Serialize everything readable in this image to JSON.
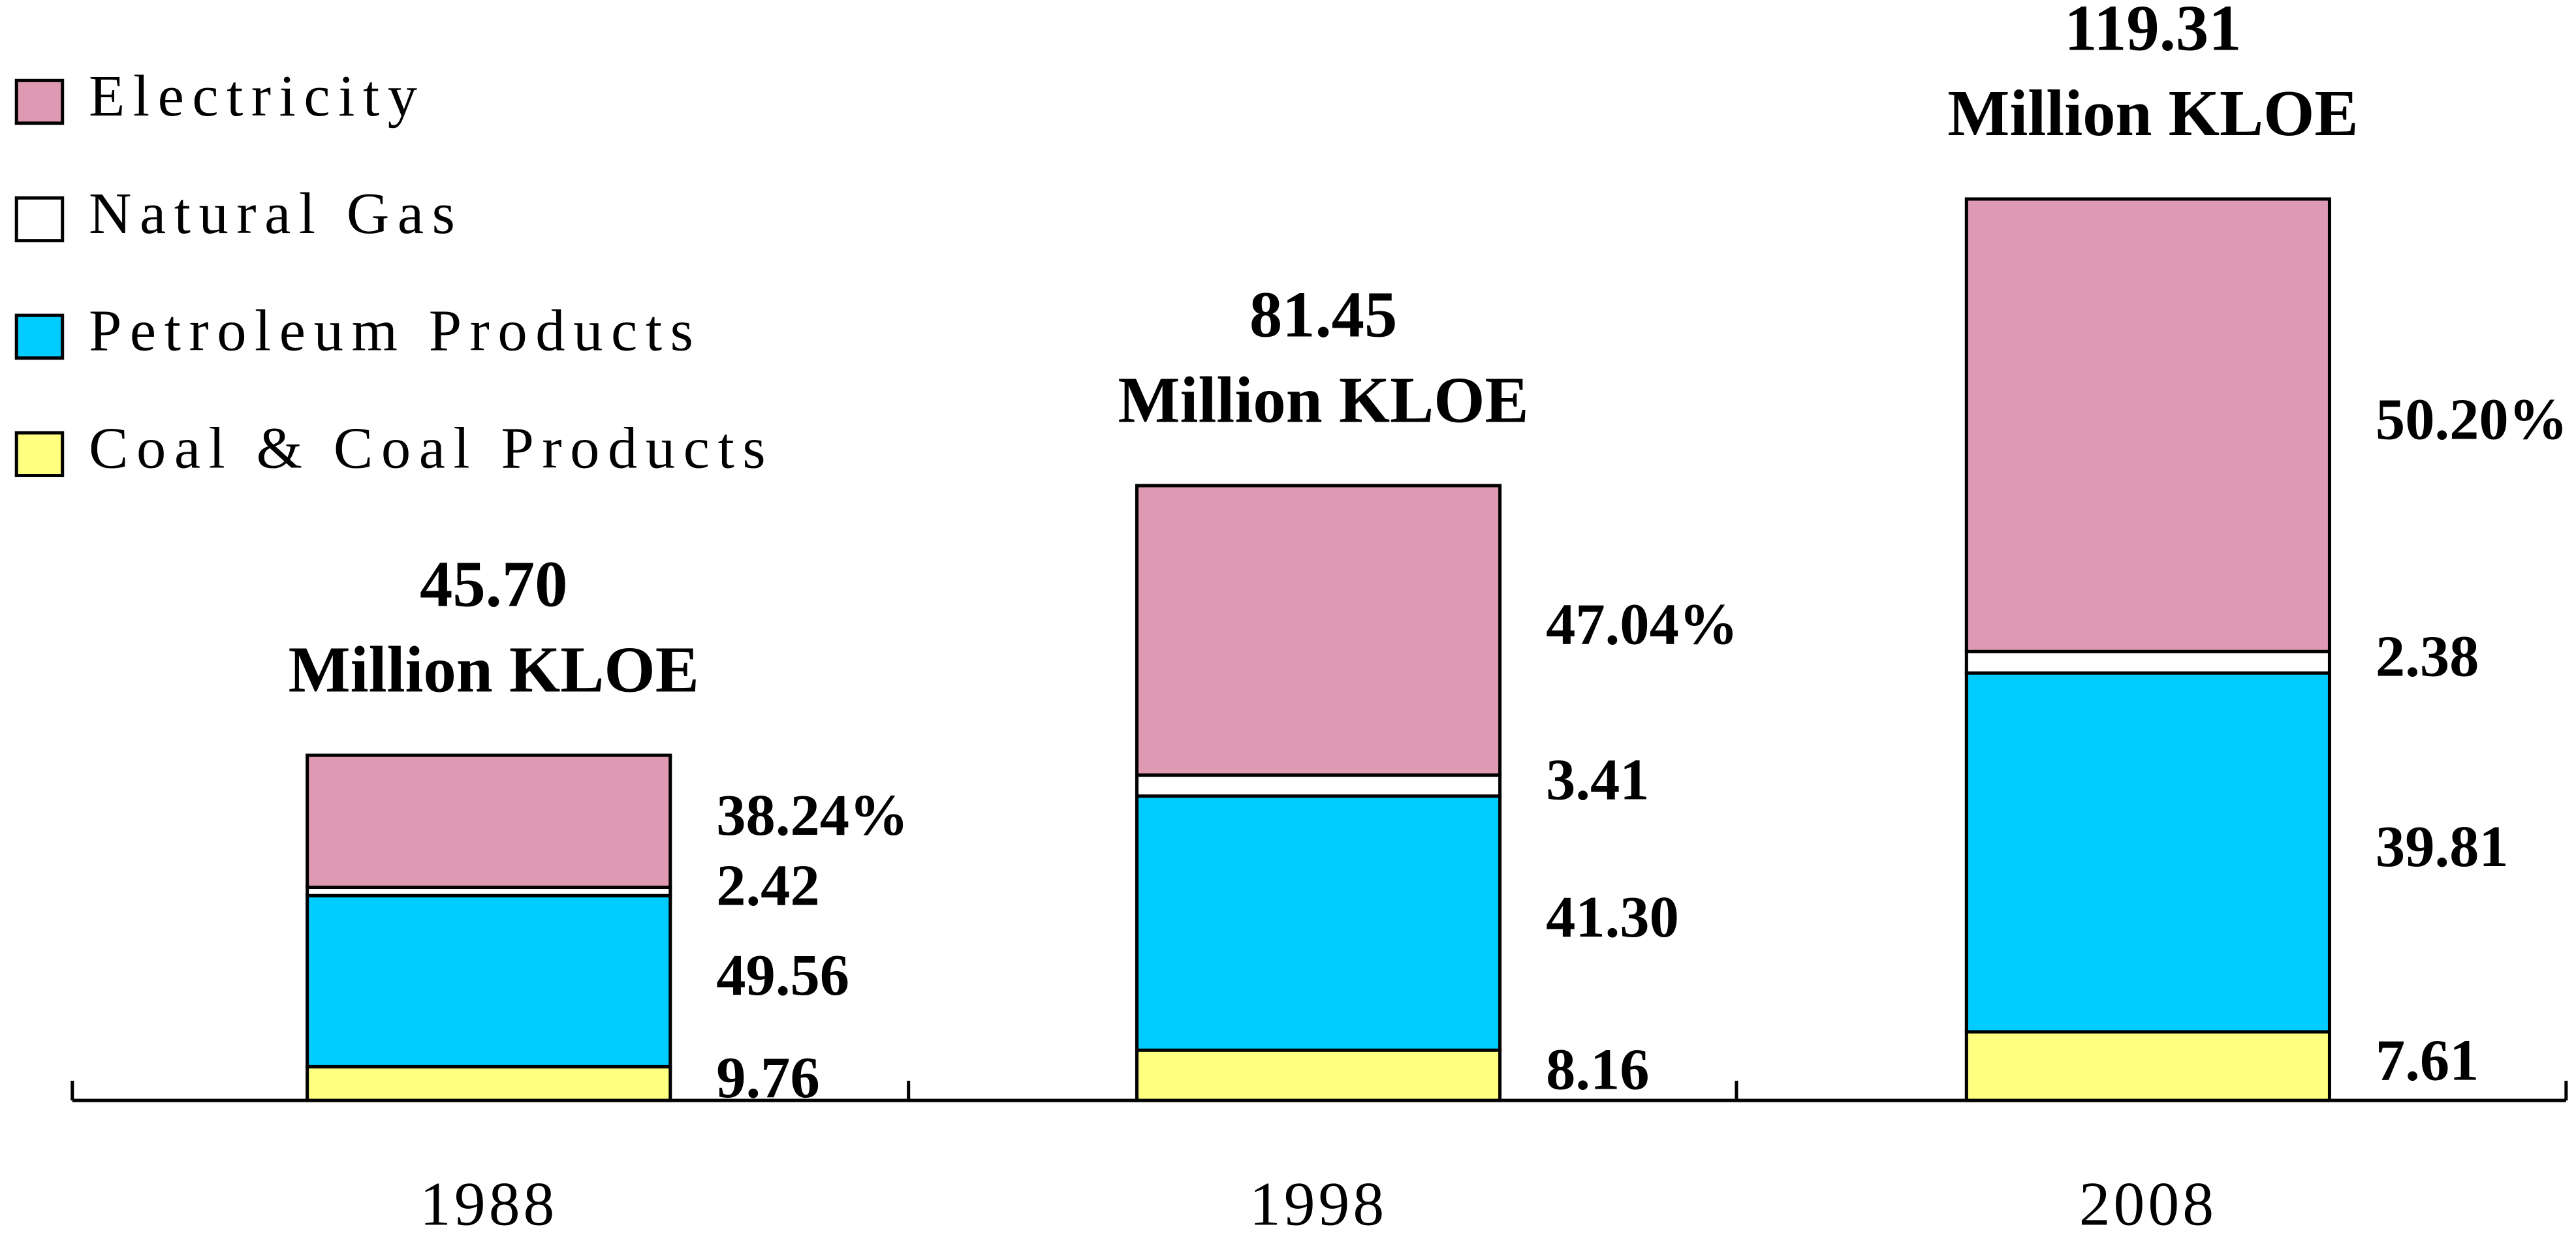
{
  "chart_data": {
    "type": "stacked-bar",
    "categories": [
      "1988",
      "1998",
      "2008"
    ],
    "series": [
      {
        "name": "Coal & Coal Products",
        "color": "#ffff80",
        "values": [
          9.76,
          8.16,
          7.61
        ]
      },
      {
        "name": "Petroleum Products",
        "color": "#00ccff",
        "values": [
          49.56,
          41.3,
          39.81
        ],
        "value_labels": [
          "49.56",
          "41.30",
          "39.81"
        ]
      },
      {
        "name": "Natural Gas",
        "color": "#ffffff",
        "values": [
          2.42,
          3.41,
          2.38
        ]
      },
      {
        "name": "Electricity",
        "color": "#dd9ab2",
        "values": [
          38.24,
          47.04,
          50.2
        ],
        "value_labels": [
          "38.24%",
          "47.04%",
          "50.20%"
        ]
      }
    ],
    "totals": [
      {
        "value": 45.7,
        "label": "45.70"
      },
      {
        "value": 81.45,
        "label": "81.45"
      },
      {
        "value": 119.31,
        "label": "119.31"
      }
    ],
    "totals_unit": "Million KLOE",
    "legend": "top-left"
  }
}
